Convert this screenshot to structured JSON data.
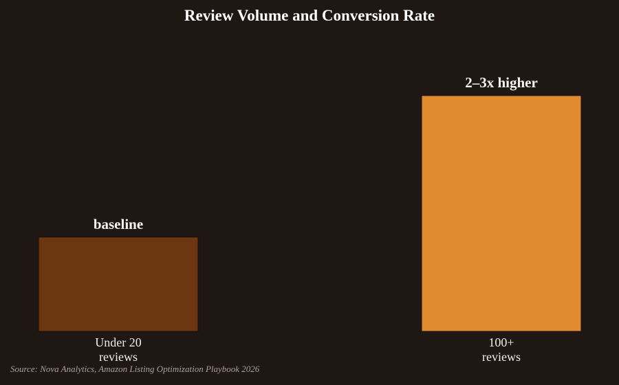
{
  "chart_data": {
    "type": "bar",
    "title": "Review Volume and Conversion Rate",
    "xlabel": "",
    "ylabel": "",
    "categories": [
      [
        "Under 20",
        "reviews"
      ],
      [
        "100+",
        "reviews"
      ]
    ],
    "values": [
      1,
      2.5
    ],
    "value_labels": [
      "baseline",
      "2–3x higher"
    ],
    "bar_colors": [
      "#6b3610",
      "#e08b30"
    ],
    "ylim": [
      0,
      2.5
    ],
    "grid": false,
    "legend": "none"
  },
  "source": "Source: Nova Analytics, Amazon Listing Optimization Playbook 2026"
}
